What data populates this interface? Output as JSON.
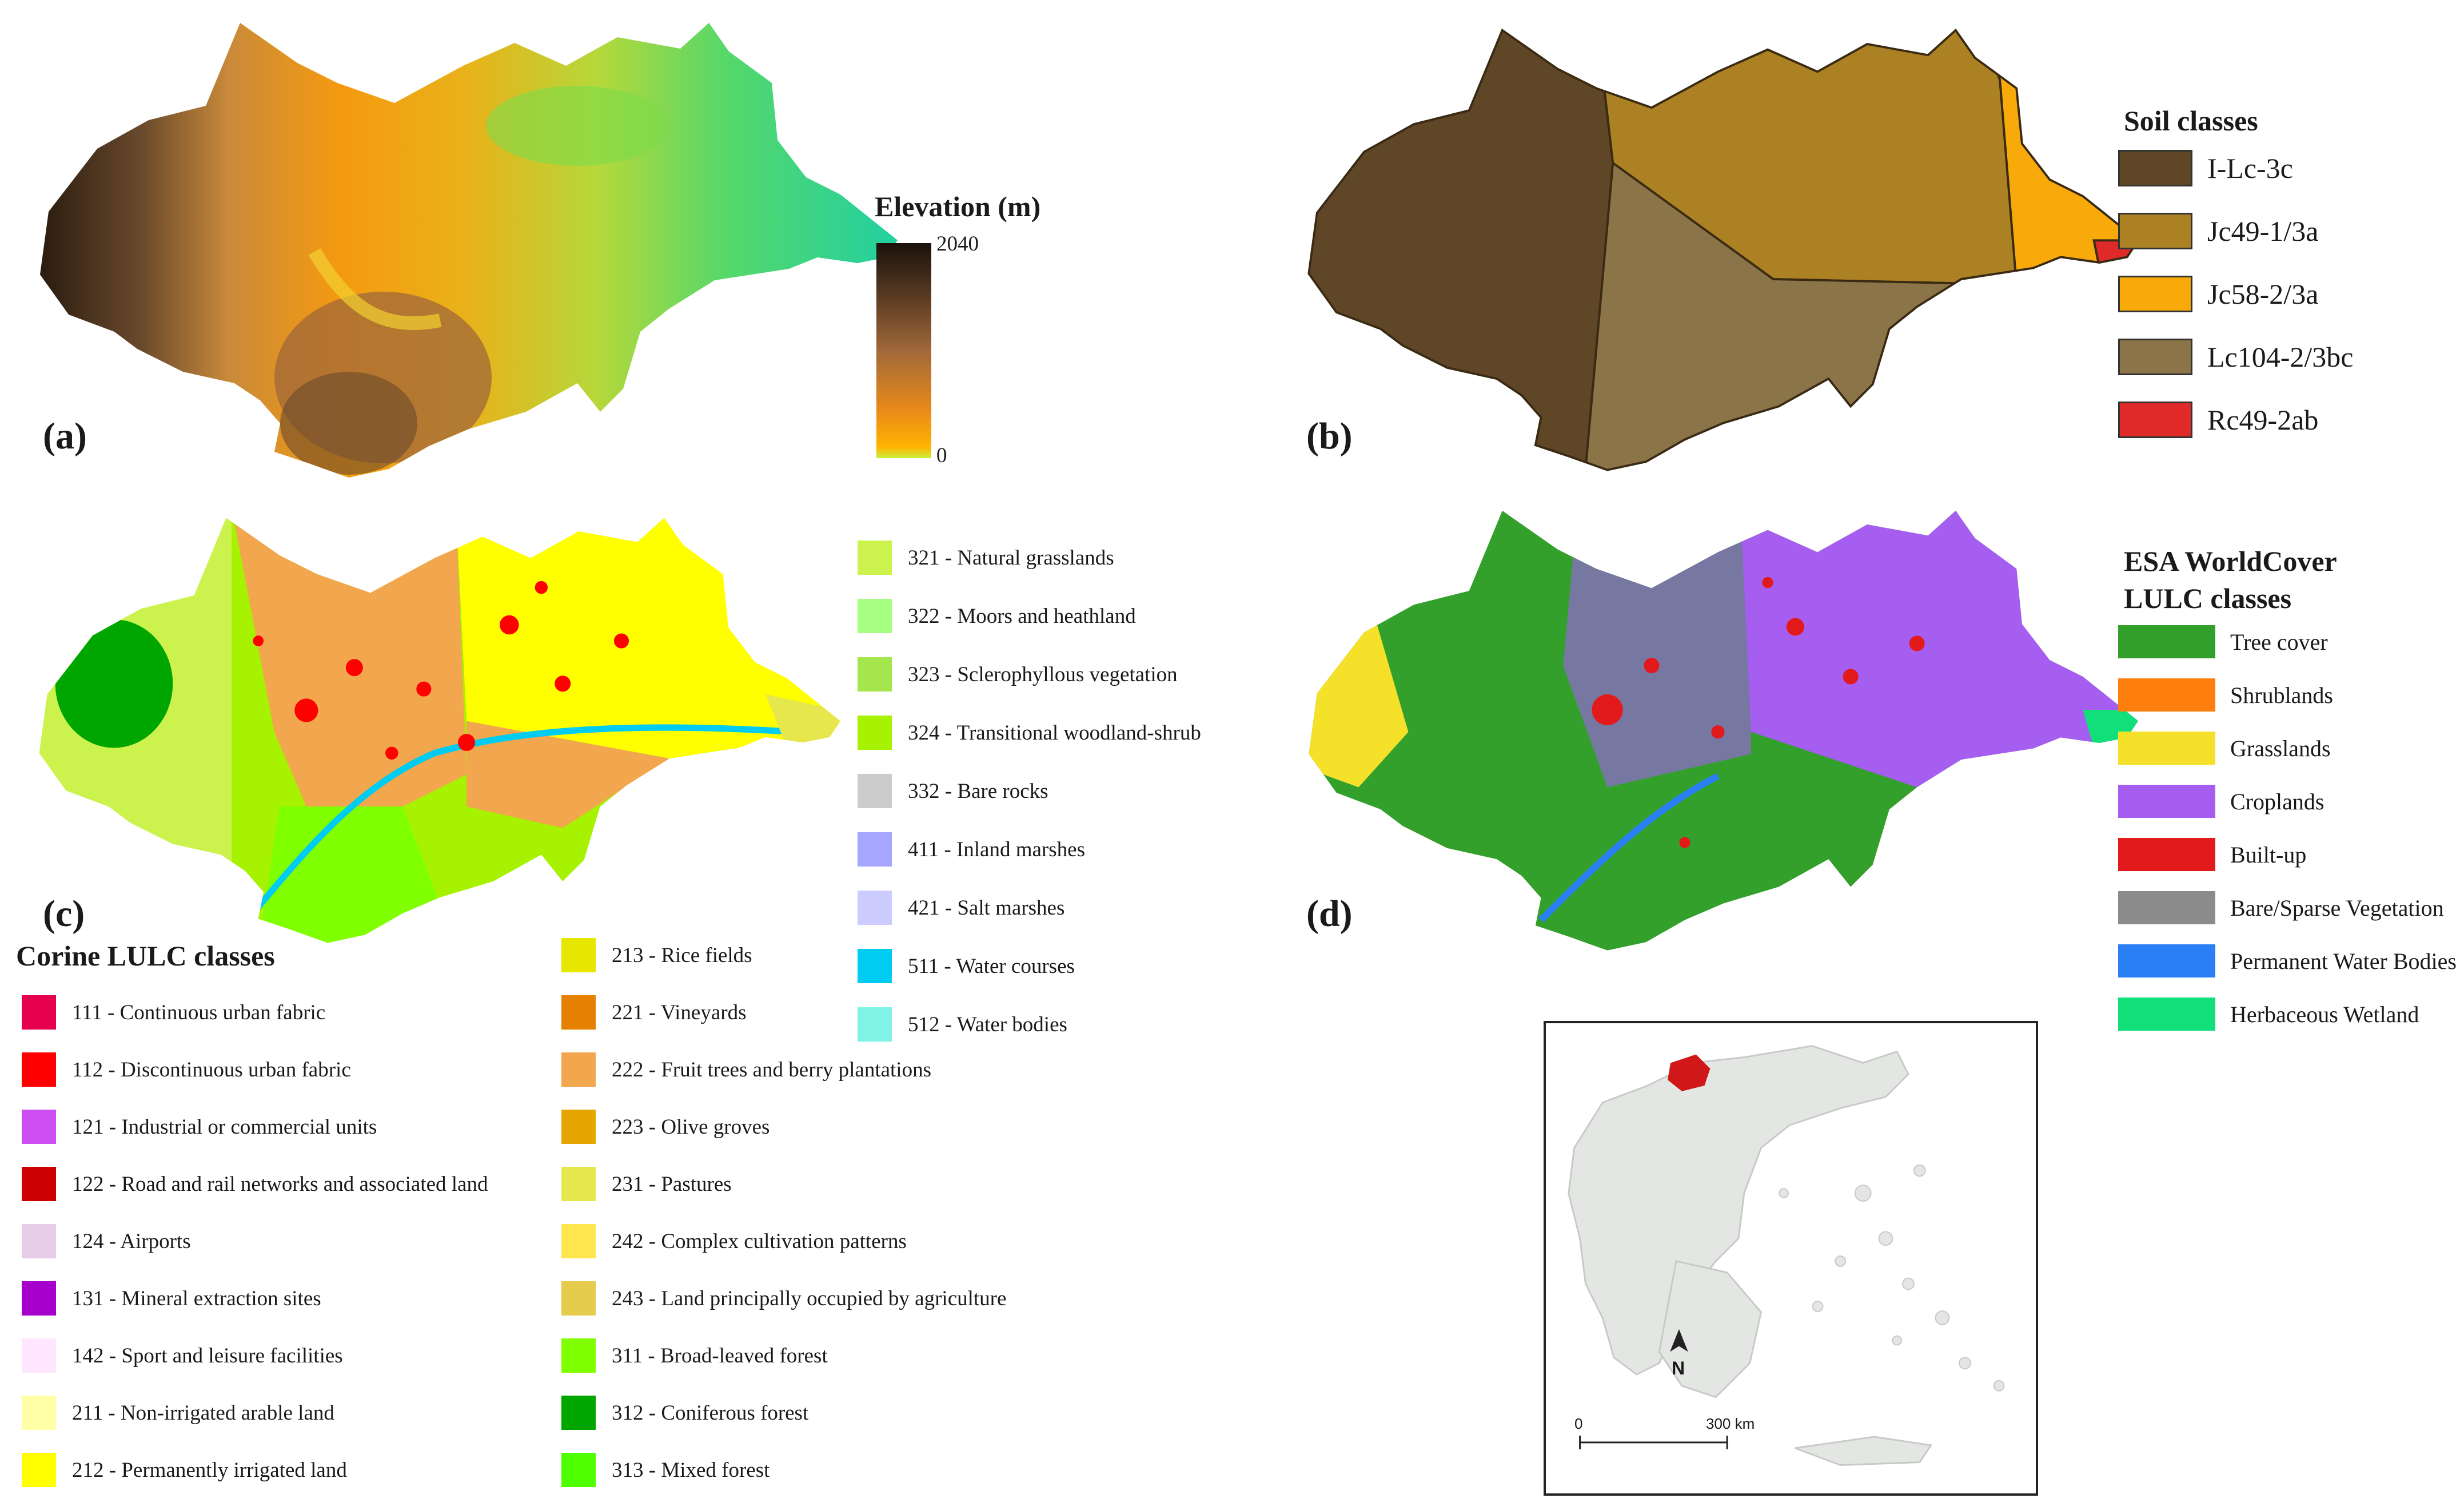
{
  "panels": {
    "a": "(a)",
    "b": "(b)",
    "c": "(c)",
    "d": "(d)"
  },
  "elevation_legend": {
    "title": "Elevation (m)",
    "max": "2040",
    "min": "0"
  },
  "soil_legend": {
    "title": "Soil classes",
    "items": [
      {
        "label": "I-Lc-3c",
        "color": "#5f4626"
      },
      {
        "label": "Jc49-1/3a",
        "color": "#ac8124"
      },
      {
        "label": "Jc58-2/3a",
        "color": "#f7aa0a"
      },
      {
        "label": "Lc104-2/3bc",
        "color": "#8c7449"
      },
      {
        "label": "Rc49-2ab",
        "color": "#e02a2a"
      }
    ]
  },
  "corine_legend": {
    "title": "Corine LULC classes",
    "col1": [
      {
        "label": "111 - Continuous urban fabric",
        "color": "#e6004d"
      },
      {
        "label": "112 - Discontinuous urban fabric",
        "color": "#ff0000"
      },
      {
        "label": "121 - Industrial or commercial units",
        "color": "#cc4df2"
      },
      {
        "label": "122 - Road and rail networks and associated land",
        "color": "#cc0000"
      },
      {
        "label": "124 - Airports",
        "color": "#e6cce6"
      },
      {
        "label": "131 - Mineral extraction sites",
        "color": "#a600cc"
      },
      {
        "label": "142 - Sport and leisure facilities",
        "color": "#ffe6ff"
      },
      {
        "label": "211 - Non-irrigated arable land",
        "color": "#ffffa8"
      },
      {
        "label": "212 - Permanently irrigated land",
        "color": "#ffff00"
      }
    ],
    "col2": [
      {
        "label": "213 - Rice fields",
        "color": "#e6e600"
      },
      {
        "label": "221 - Vineyards",
        "color": "#e68000"
      },
      {
        "label": "222 - Fruit trees and berry plantations",
        "color": "#f2a64d"
      },
      {
        "label": "223 - Olive groves",
        "color": "#e6a600"
      },
      {
        "label": "231 - Pastures",
        "color": "#e6e64d"
      },
      {
        "label": "242 - Complex cultivation patterns",
        "color": "#ffe64d"
      },
      {
        "label": "243 - Land principally occupied by agriculture",
        "color": "#e6cc4d"
      },
      {
        "label": "311 - Broad-leaved forest",
        "color": "#80ff00"
      },
      {
        "label": "312 - Coniferous forest",
        "color": "#00a600"
      },
      {
        "label": "313 - Mixed forest",
        "color": "#4dff00"
      }
    ],
    "col3": [
      {
        "label": "321 - Natural grasslands",
        "color": "#ccf24d"
      },
      {
        "label": "322 - Moors and heathland",
        "color": "#a6ff80"
      },
      {
        "label": "323 - Sclerophyllous vegetation",
        "color": "#a6e64d"
      },
      {
        "label": "324 - Transitional woodland-shrub",
        "color": "#a6f200"
      },
      {
        "label": "332 - Bare rocks",
        "color": "#cccccc"
      },
      {
        "label": "411 - Inland marshes",
        "color": "#a6a6ff"
      },
      {
        "label": "421 - Salt marshes",
        "color": "#ccccff"
      },
      {
        "label": "511 - Water courses",
        "color": "#00ccf2"
      },
      {
        "label": "512 - Water bodies",
        "color": "#80f2e6"
      }
    ]
  },
  "esa_legend": {
    "title_line1": "ESA WorldCover",
    "title_line2": "LULC classes",
    "items": [
      {
        "label": "Tree cover",
        "color": "#33a02c"
      },
      {
        "label": "Shrublands",
        "color": "#ff7f0e"
      },
      {
        "label": "Grasslands",
        "color": "#f5e12a"
      },
      {
        "label": "Croplands",
        "color": "#a55ef0"
      },
      {
        "label": "Built-up",
        "color": "#e31a1c"
      },
      {
        "label": "Bare/Sparse Vegetation",
        "color": "#8c8c8c"
      },
      {
        "label": "Permanent Water Bodies",
        "color": "#2b7ff5"
      },
      {
        "label": "Herbaceous Wetland",
        "color": "#11e07a"
      }
    ]
  },
  "inset": {
    "north": "N",
    "scale_start": "0",
    "scale_end": "300 km"
  }
}
